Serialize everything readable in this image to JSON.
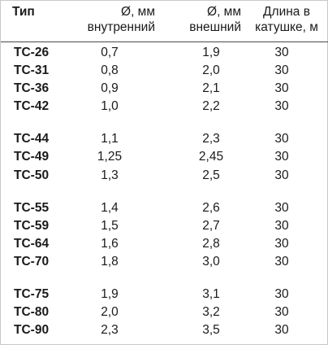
{
  "table": {
    "headers": {
      "type": "Тип",
      "inner_line1": "Ø, мм",
      "inner_line2": "внутренний",
      "outer_line1": "Ø, мм",
      "outer_line2": "внешний",
      "length_line1": "Длина в",
      "length_line2": "катушке, м"
    },
    "rows": [
      {
        "type": "ТС-26",
        "inner": "0,7",
        "outer": "1,9",
        "length": "30"
      },
      {
        "type": "ТС-31",
        "inner": "0,8",
        "outer": "2,0",
        "length": "30"
      },
      {
        "type": "ТС-36",
        "inner": "0,9",
        "outer": "2,1",
        "length": "30"
      },
      {
        "type": "ТС-42",
        "inner": "1,0",
        "outer": "2,2",
        "length": "30"
      },
      {
        "type": "ТС-44",
        "inner": "1,1",
        "outer": "2,3",
        "length": "30"
      },
      {
        "type": "ТС-49",
        "inner": "1,25",
        "outer": "2,45",
        "length": "30"
      },
      {
        "type": "ТС-50",
        "inner": "1,3",
        "outer": "2,5",
        "length": "30"
      },
      {
        "type": "ТС-55",
        "inner": "1,4",
        "outer": "2,6",
        "length": "30"
      },
      {
        "type": "ТС-59",
        "inner": "1,5",
        "outer": "2,7",
        "length": "30"
      },
      {
        "type": "ТС-64",
        "inner": "1,6",
        "outer": "2,8",
        "length": "30"
      },
      {
        "type": "ТС-70",
        "inner": "1,8",
        "outer": "3,0",
        "length": "30"
      },
      {
        "type": "ТС-75",
        "inner": "1,9",
        "outer": "3,1",
        "length": "30"
      },
      {
        "type": "ТС-80",
        "inner": "2,0",
        "outer": "3,2",
        "length": "30"
      },
      {
        "type": "ТС-90",
        "inner": "2,3",
        "outer": "3,5",
        "length": "30"
      }
    ]
  }
}
